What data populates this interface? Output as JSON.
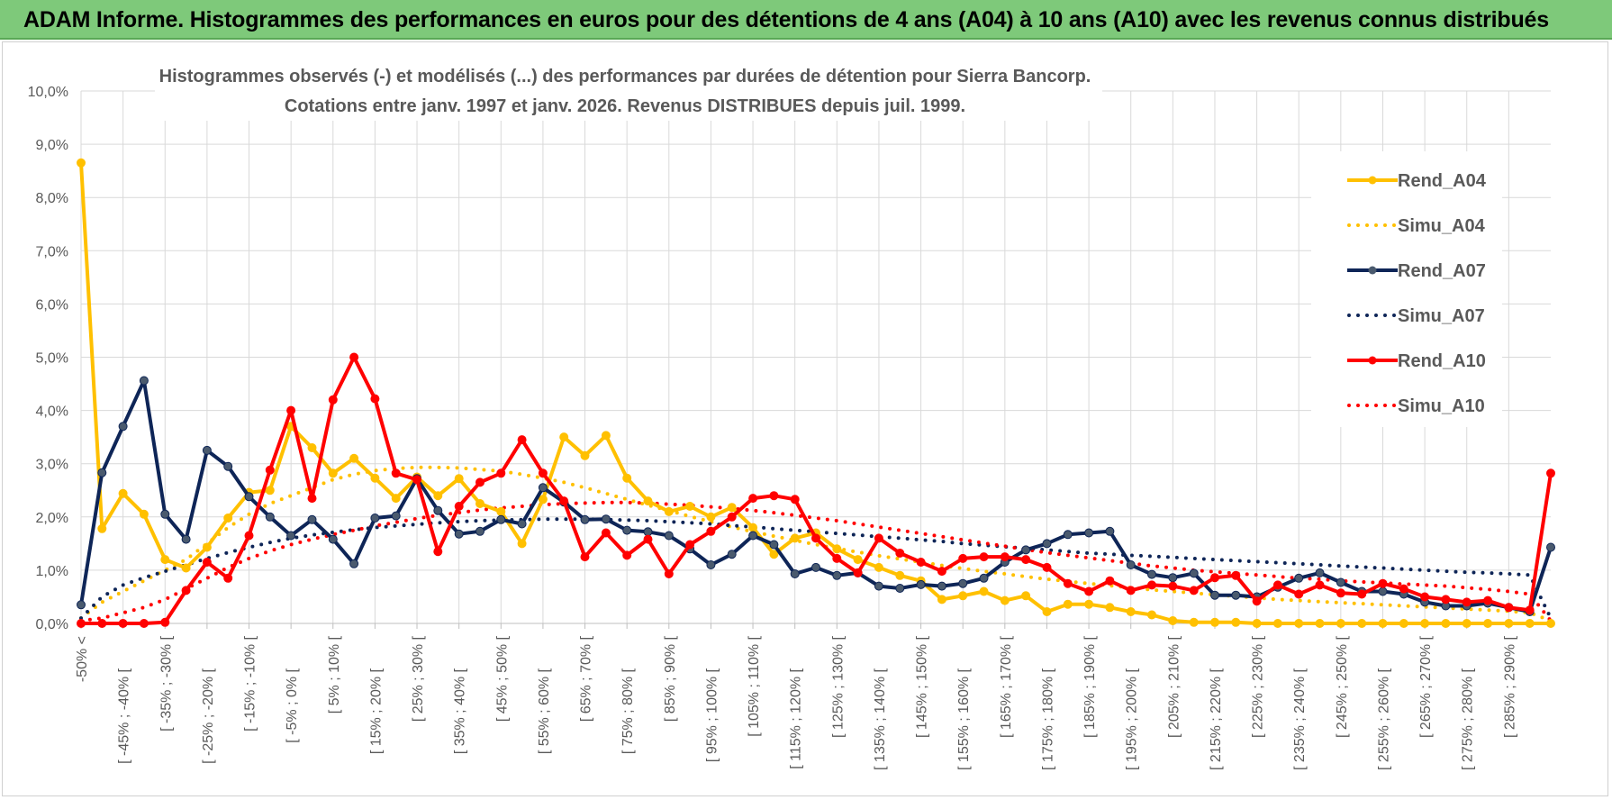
{
  "banner": {
    "title": "ADAM Informe. Histogrammes des performances en euros pour des détentions de 4 ans (A04) à 10 ans (A10) avec les revenus connus distribués"
  },
  "colors": {
    "banner_bg": "#7ec97a",
    "A04": "#ffc000",
    "A07": "#0e2557",
    "A07_marker": "#4a5a6e",
    "A10": "#ff0000",
    "grid": "#d9d9d9",
    "text": "#595959"
  },
  "chart_data": {
    "type": "line",
    "title_lines": [
      "Histogrammes observés (-) et modélisés (...) des performances par durées de détention pour Sierra Bancorp.",
      "Cotations entre janv. 1997 et janv. 2026. Revenus DISTRIBUES depuis juil. 1999."
    ],
    "ylim": [
      0,
      10
    ],
    "y_ticks": [
      "0,0%",
      "1,0%",
      "2,0%",
      "3,0%",
      "4,0%",
      "5,0%",
      "6,0%",
      "7,0%",
      "8,0%",
      "9,0%",
      "10,0%"
    ],
    "x_tick_labels": [
      "-50% <",
      "[ -45% ; -40% [",
      "[ -35% ; -30% [",
      "[ -25% ; -20% [",
      "[ -15% ; -10% [",
      "[ -5% ; 0% [",
      "[ 5% ; 10% [",
      "[ 15% ; 20% [",
      "[ 25% ; 30% [",
      "[ 35% ; 40% [",
      "[ 45% ; 50% [",
      "[ 55% ; 60% [",
      "[ 65% ; 70% [",
      "[ 75% ; 80% [",
      "[ 85% ; 90% [",
      "[ 95% ; 100% [",
      "[ 105% ; 110% [",
      "[ 115% ; 120% [",
      "[ 125% ; 130% [",
      "[ 135% ; 140% [",
      "[ 145% ; 150% [",
      "[ 155% ; 160% [",
      "[ 165% ; 170% [",
      "[ 175% ; 180% [",
      "[ 185% ; 190% [",
      "[ 195% ; 200% [",
      "[ 205% ; 210% [",
      "[ 215% ; 220% [",
      "[ 225% ; 230% [",
      "[ 235% ; 240% [",
      "[ 245% ; 250% [",
      "[ 255% ; 260% [",
      "[ 265% ; 270% [",
      "[ 275% ; 280% [",
      "[ 285% ; 290% ["
    ],
    "legend": [
      "Rend_A04",
      "Simu_A04",
      "Rend_A07",
      "Simu_A07",
      "Rend_A10",
      "Simu_A10"
    ],
    "series": [
      {
        "name": "Rend_A04",
        "style": "solid",
        "color": "#ffc000",
        "values": [
          8.65,
          1.78,
          2.44,
          2.05,
          1.2,
          1.04,
          1.43,
          1.98,
          2.46,
          2.5,
          3.7,
          3.3,
          2.82,
          3.1,
          2.73,
          2.35,
          2.75,
          2.4,
          2.72,
          2.25,
          2.1,
          1.5,
          2.33,
          3.5,
          3.15,
          3.53,
          2.73,
          2.3,
          2.1,
          2.2,
          2.0,
          2.18,
          1.8,
          1.3,
          1.6,
          1.7,
          1.4,
          1.2,
          1.05,
          0.9,
          0.8,
          0.45,
          0.52,
          0.6,
          0.43,
          0.52,
          0.22,
          0.36,
          0.36,
          0.3,
          0.22,
          0.16,
          0.05,
          0.02,
          0.02,
          0.02,
          0.0,
          0.0,
          0.0,
          0.0,
          0.0,
          0.0,
          0.0,
          0.0,
          0.0,
          0.0,
          0.0,
          0.0,
          0.0,
          0.0,
          0.0
        ]
      },
      {
        "name": "Simu_A04",
        "style": "dotted",
        "color": "#ffc000",
        "values": [
          0.1,
          0.4,
          0.6,
          0.8,
          1.0,
          1.2,
          1.5,
          1.8,
          2.05,
          2.25,
          2.4,
          2.55,
          2.7,
          2.8,
          2.87,
          2.91,
          2.93,
          2.93,
          2.92,
          2.89,
          2.86,
          2.8,
          2.73,
          2.65,
          2.55,
          2.44,
          2.33,
          2.22,
          2.12,
          2.01,
          1.91,
          1.81,
          1.72,
          1.64,
          1.56,
          1.48,
          1.41,
          1.34,
          1.27,
          1.21,
          1.15,
          1.09,
          1.03,
          0.98,
          0.93,
          0.88,
          0.83,
          0.79,
          0.75,
          0.71,
          0.67,
          0.63,
          0.6,
          0.57,
          0.54,
          0.51,
          0.48,
          0.45,
          0.43,
          0.41,
          0.39,
          0.37,
          0.35,
          0.33,
          0.31,
          0.29,
          0.27,
          0.25,
          0.23,
          0.2,
          0.05
        ]
      },
      {
        "name": "Rend_A07",
        "style": "solid",
        "color": "#0e2557",
        "values": [
          0.35,
          2.83,
          3.7,
          4.56,
          2.05,
          1.58,
          3.25,
          2.95,
          2.38,
          2.0,
          1.65,
          1.95,
          1.58,
          1.12,
          1.98,
          2.02,
          2.72,
          2.12,
          1.68,
          1.73,
          1.95,
          1.87,
          2.55,
          2.28,
          1.95,
          1.96,
          1.75,
          1.72,
          1.65,
          1.4,
          1.1,
          1.3,
          1.65,
          1.48,
          0.93,
          1.05,
          0.9,
          0.95,
          0.7,
          0.66,
          0.73,
          0.7,
          0.75,
          0.85,
          1.15,
          1.38,
          1.5,
          1.67,
          1.7,
          1.73,
          1.1,
          0.92,
          0.86,
          0.94,
          0.53,
          0.53,
          0.5,
          0.68,
          0.85,
          0.95,
          0.77,
          0.6,
          0.6,
          0.55,
          0.4,
          0.33,
          0.33,
          0.38,
          0.3,
          0.22,
          1.43
        ]
      },
      {
        "name": "Simu_A07",
        "style": "dotted",
        "color": "#0e2557",
        "values": [
          0.1,
          0.5,
          0.72,
          0.86,
          0.98,
          1.1,
          1.22,
          1.33,
          1.43,
          1.52,
          1.6,
          1.66,
          1.71,
          1.76,
          1.8,
          1.83,
          1.86,
          1.89,
          1.91,
          1.93,
          1.94,
          1.95,
          1.96,
          1.96,
          1.96,
          1.95,
          1.94,
          1.93,
          1.91,
          1.89,
          1.87,
          1.84,
          1.81,
          1.78,
          1.75,
          1.72,
          1.69,
          1.66,
          1.63,
          1.6,
          1.57,
          1.54,
          1.5,
          1.47,
          1.44,
          1.41,
          1.38,
          1.35,
          1.32,
          1.3,
          1.28,
          1.26,
          1.24,
          1.22,
          1.2,
          1.18,
          1.16,
          1.14,
          1.12,
          1.1,
          1.08,
          1.06,
          1.04,
          1.02,
          1.0,
          0.98,
          0.96,
          0.95,
          0.93,
          0.91,
          0.1
        ]
      },
      {
        "name": "Rend_A10",
        "style": "solid",
        "color": "#ff0000",
        "values": [
          0.0,
          0.0,
          0.0,
          0.0,
          0.02,
          0.62,
          1.15,
          0.85,
          1.65,
          2.88,
          4.0,
          2.35,
          4.2,
          5.0,
          4.22,
          2.82,
          2.7,
          1.35,
          2.2,
          2.65,
          2.82,
          3.45,
          2.82,
          2.3,
          1.25,
          1.7,
          1.28,
          1.58,
          0.93,
          1.48,
          1.73,
          2.0,
          2.35,
          2.4,
          2.33,
          1.6,
          1.22,
          0.95,
          1.6,
          1.32,
          1.15,
          0.98,
          1.22,
          1.25,
          1.25,
          1.2,
          1.05,
          0.75,
          0.6,
          0.8,
          0.62,
          0.72,
          0.7,
          0.62,
          0.86,
          0.9,
          0.42,
          0.72,
          0.55,
          0.72,
          0.57,
          0.55,
          0.75,
          0.65,
          0.5,
          0.45,
          0.4,
          0.43,
          0.3,
          0.25,
          2.82
        ]
      },
      {
        "name": "Simu_A10",
        "style": "dotted",
        "color": "#ff0000",
        "values": [
          0.05,
          0.1,
          0.2,
          0.3,
          0.45,
          0.65,
          0.85,
          1.05,
          1.22,
          1.36,
          1.48,
          1.58,
          1.67,
          1.75,
          1.83,
          1.9,
          1.97,
          2.03,
          2.08,
          2.13,
          2.17,
          2.2,
          2.23,
          2.25,
          2.26,
          2.27,
          2.27,
          2.26,
          2.24,
          2.22,
          2.19,
          2.16,
          2.12,
          2.08,
          2.03,
          1.98,
          1.93,
          1.87,
          1.81,
          1.75,
          1.69,
          1.63,
          1.57,
          1.51,
          1.45,
          1.39,
          1.33,
          1.28,
          1.23,
          1.18,
          1.13,
          1.08,
          1.04,
          1.0,
          0.97,
          0.94,
          0.91,
          0.88,
          0.85,
          0.83,
          0.8,
          0.78,
          0.76,
          0.74,
          0.72,
          0.7,
          0.67,
          0.64,
          0.6,
          0.55,
          0.05
        ]
      }
    ]
  }
}
